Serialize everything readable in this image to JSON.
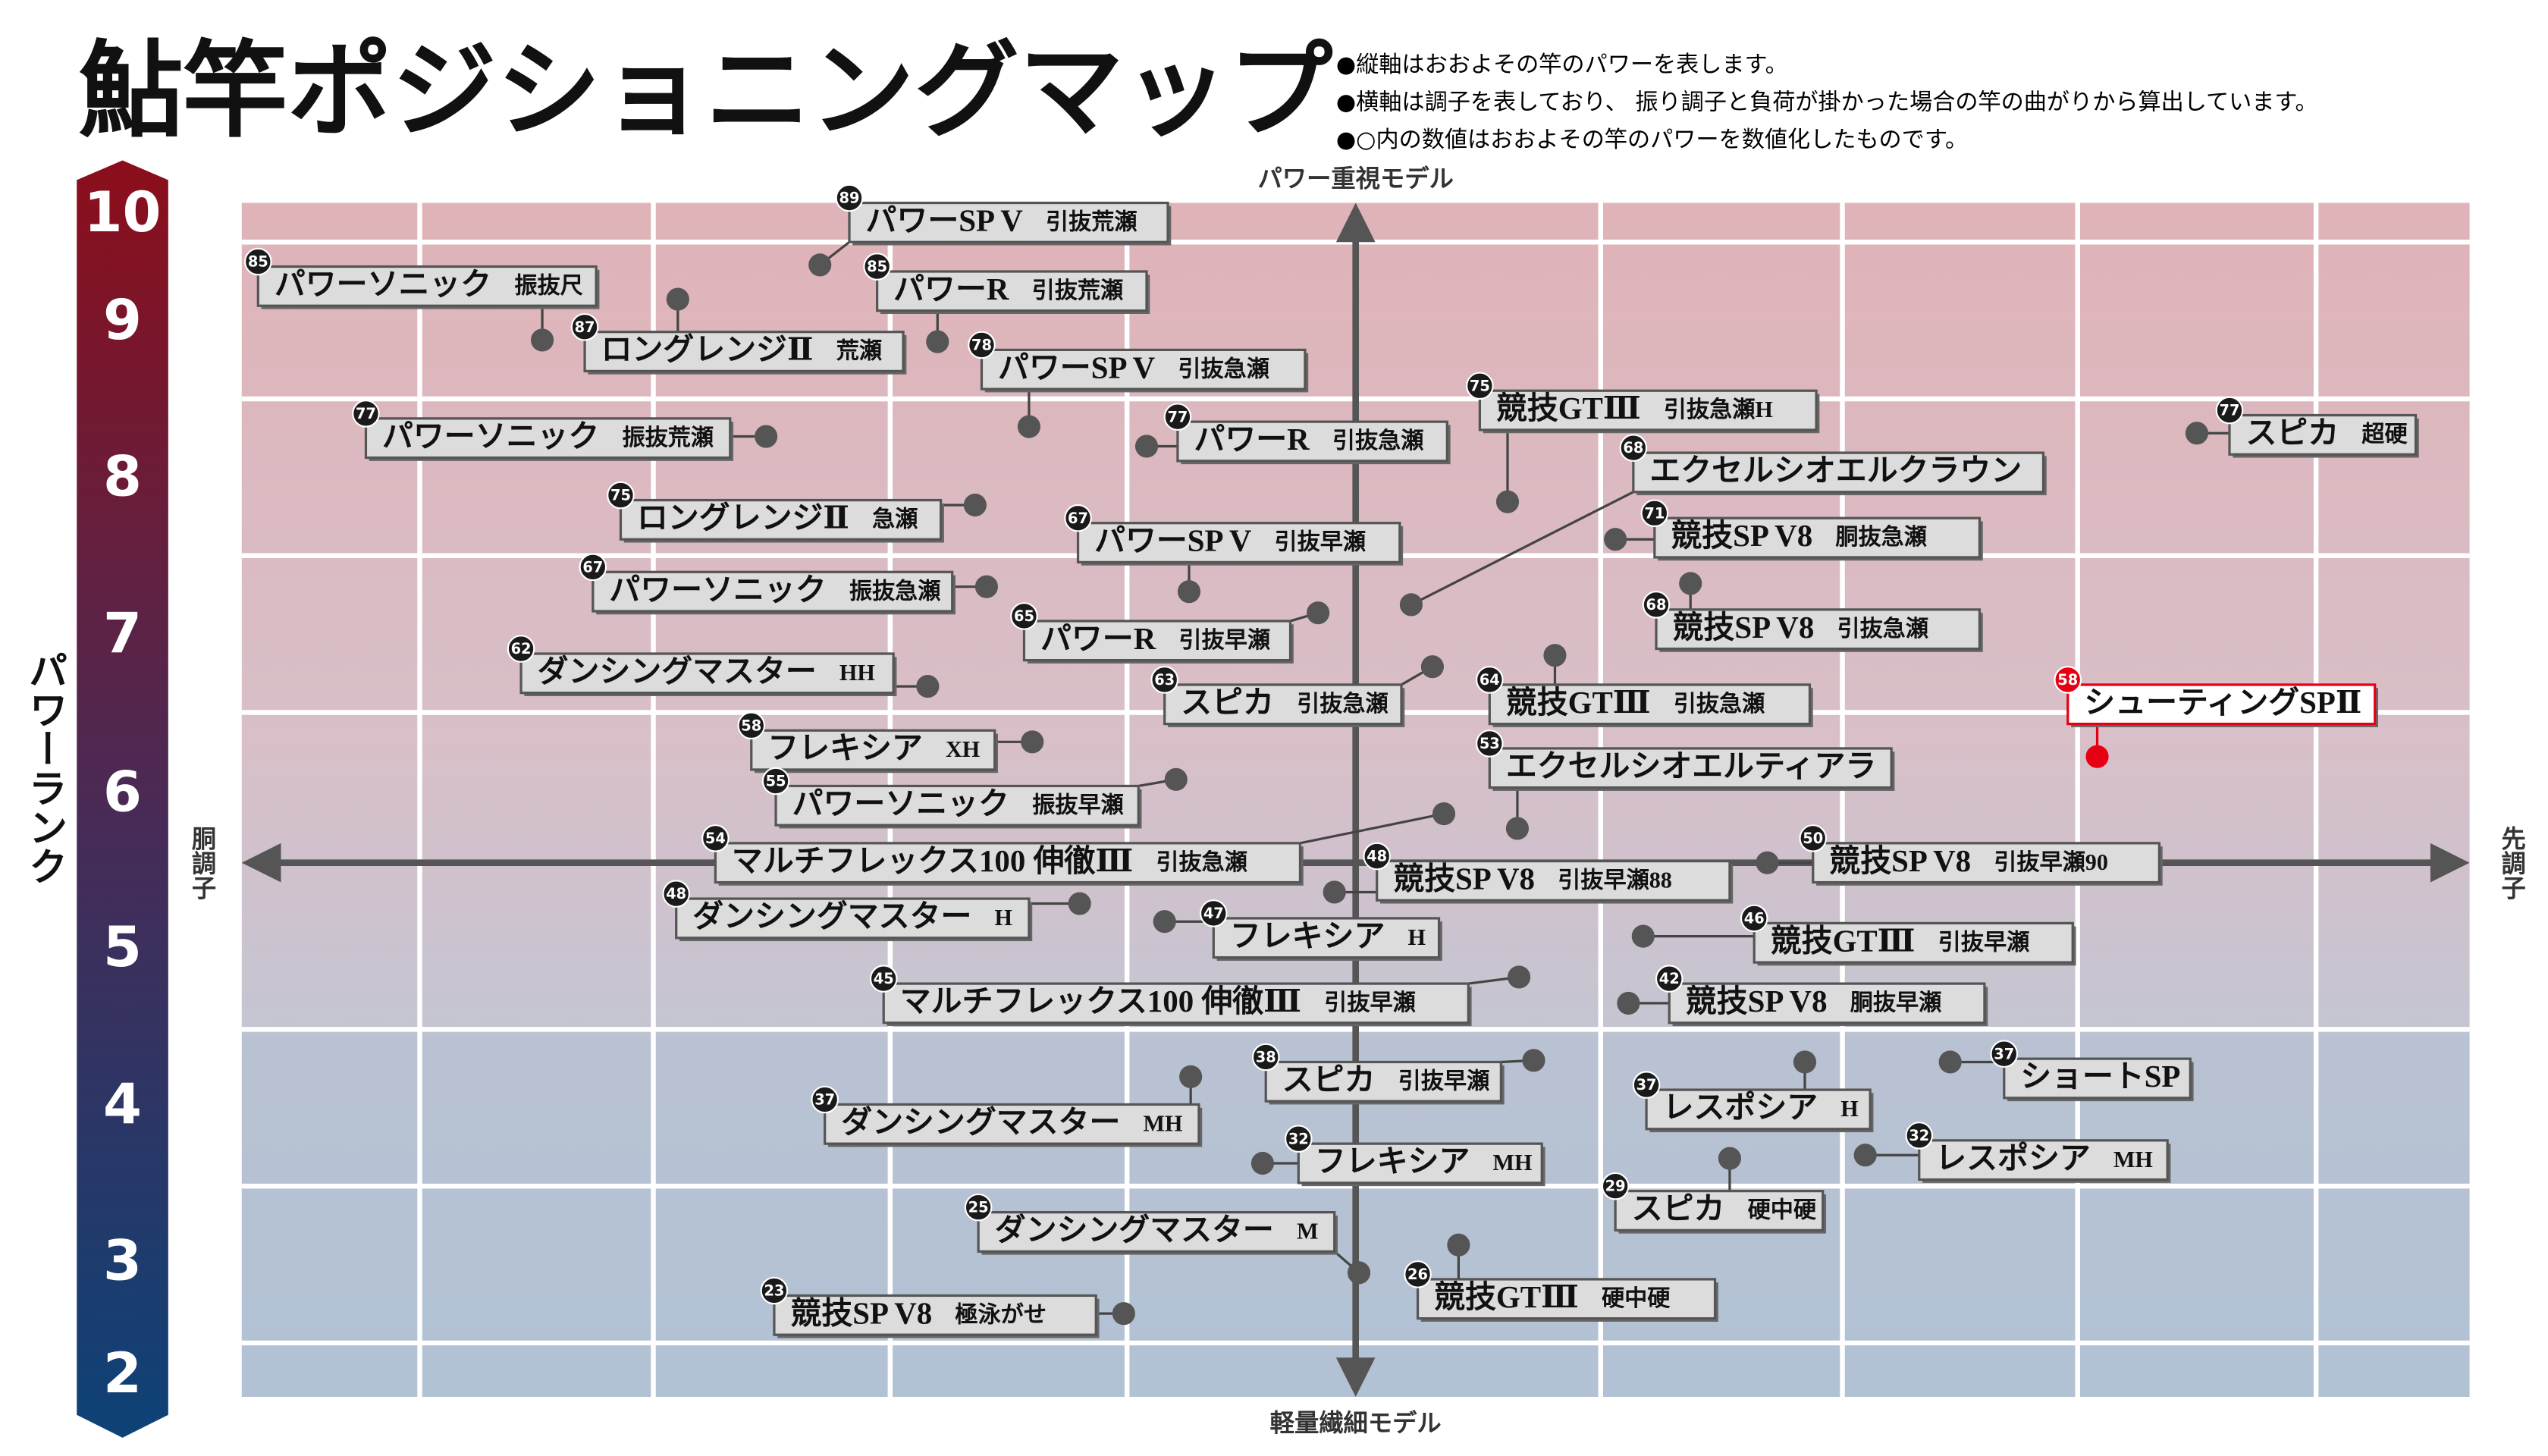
{
  "header": {
    "title": "鮎竿ポジショニングマップ",
    "notes": [
      "●縦軸はおおよその竿のパワーを表します。",
      "●横軸は調子を表しており、 振り調子と負荷が掛かった場合の竿の曲がりから算出しています。",
      "●○内の数値はおおよその竿のパワーを数値化したものです。"
    ]
  },
  "axes": {
    "top": "パワー重視モデル",
    "bottom": "軽量繊細モデル",
    "left": "胴調子",
    "right": "先調子",
    "rank_label": "パワーランク",
    "ranks": [
      10,
      9,
      8,
      7,
      6,
      5,
      4,
      3,
      2
    ]
  },
  "items": [
    {
      "power": 89,
      "name": "パワーSP V",
      "model": "引抜荒瀬"
    },
    {
      "power": 85,
      "name": "パワーソニック",
      "model": "振抜尺"
    },
    {
      "power": 85,
      "name": "パワーR",
      "model": "引抜荒瀬"
    },
    {
      "power": 87,
      "name": "ロングレンジⅡ",
      "model": "荒瀬"
    },
    {
      "power": 78,
      "name": "パワーSP V",
      "model": "引抜急瀬"
    },
    {
      "power": 75,
      "name": "競技GTⅢ",
      "model": "引抜急瀬H"
    },
    {
      "power": 77,
      "name": "スピカ",
      "model": "超硬"
    },
    {
      "power": 77,
      "name": "パワーソニック",
      "model": "振抜荒瀬"
    },
    {
      "power": 77,
      "name": "パワーR",
      "model": "引抜急瀬"
    },
    {
      "power": 68,
      "name": "エクセルシオエルクラウン"
    },
    {
      "power": 75,
      "name": "ロングレンジⅡ",
      "model": "急瀬"
    },
    {
      "power": 71,
      "name": "競技SP V8",
      "model": "胴抜急瀬"
    },
    {
      "power": 67,
      "name": "パワーSP V",
      "model": "引抜早瀬"
    },
    {
      "power": 67,
      "name": "パワーソニック",
      "model": "振抜急瀬"
    },
    {
      "power": 68,
      "name": "競技SP V8",
      "model": "引抜急瀬"
    },
    {
      "power": 65,
      "name": "パワーR",
      "model": "引抜早瀬"
    },
    {
      "power": 62,
      "name": "ダンシングマスター",
      "model": "HH"
    },
    {
      "power": 63,
      "name": "スピカ",
      "model": "引抜急瀬"
    },
    {
      "power": 64,
      "name": "競技GTⅢ",
      "model": "引抜急瀬"
    },
    {
      "power": 58,
      "name": "シューティングSPⅡ"
    },
    {
      "power": 58,
      "name": "フレキシア",
      "model": "XH"
    },
    {
      "power": 53,
      "name": "エクセルシオエルティアラ"
    },
    {
      "power": 55,
      "name": "パワーソニック",
      "model": "振抜早瀬"
    },
    {
      "power": 54,
      "name": "マルチフレックス100 伸徹Ⅲ",
      "model": "引抜急瀬"
    },
    {
      "power": 50,
      "name": "競技SP V8",
      "model": "引抜早瀬90"
    },
    {
      "power": 48,
      "name": "競技SP V8",
      "model": "引抜早瀬88"
    },
    {
      "power": 48,
      "name": "ダンシングマスター",
      "model": "H"
    },
    {
      "power": 47,
      "name": "フレキシア",
      "model": "H"
    },
    {
      "power": 46,
      "name": "競技GTⅢ",
      "model": "引抜早瀬"
    },
    {
      "power": 45,
      "name": "マルチフレックス100 伸徹Ⅲ",
      "model": "引抜早瀬"
    },
    {
      "power": 42,
      "name": "競技SP V8",
      "model": "胴抜早瀬"
    },
    {
      "power": 38,
      "name": "スピカ",
      "model": "引抜早瀬"
    },
    {
      "power": 37,
      "name": "ショートSP"
    },
    {
      "power": 37,
      "name": "レスポシア",
      "model": "H"
    },
    {
      "power": 37,
      "name": "ダンシングマスター",
      "model": "MH"
    },
    {
      "power": 32,
      "name": "フレキシア",
      "model": "MH"
    },
    {
      "power": 32,
      "name": "レスポシア",
      "model": "MH"
    },
    {
      "power": 29,
      "name": "スピカ",
      "model": "硬中硬"
    },
    {
      "power": 25,
      "name": "ダンシングマスター",
      "model": "M"
    },
    {
      "power": 26,
      "name": "競技GTⅢ",
      "model": "硬中硬"
    },
    {
      "power": 23,
      "name": "競技SP V8",
      "model": "極泳がせ"
    }
  ]
}
